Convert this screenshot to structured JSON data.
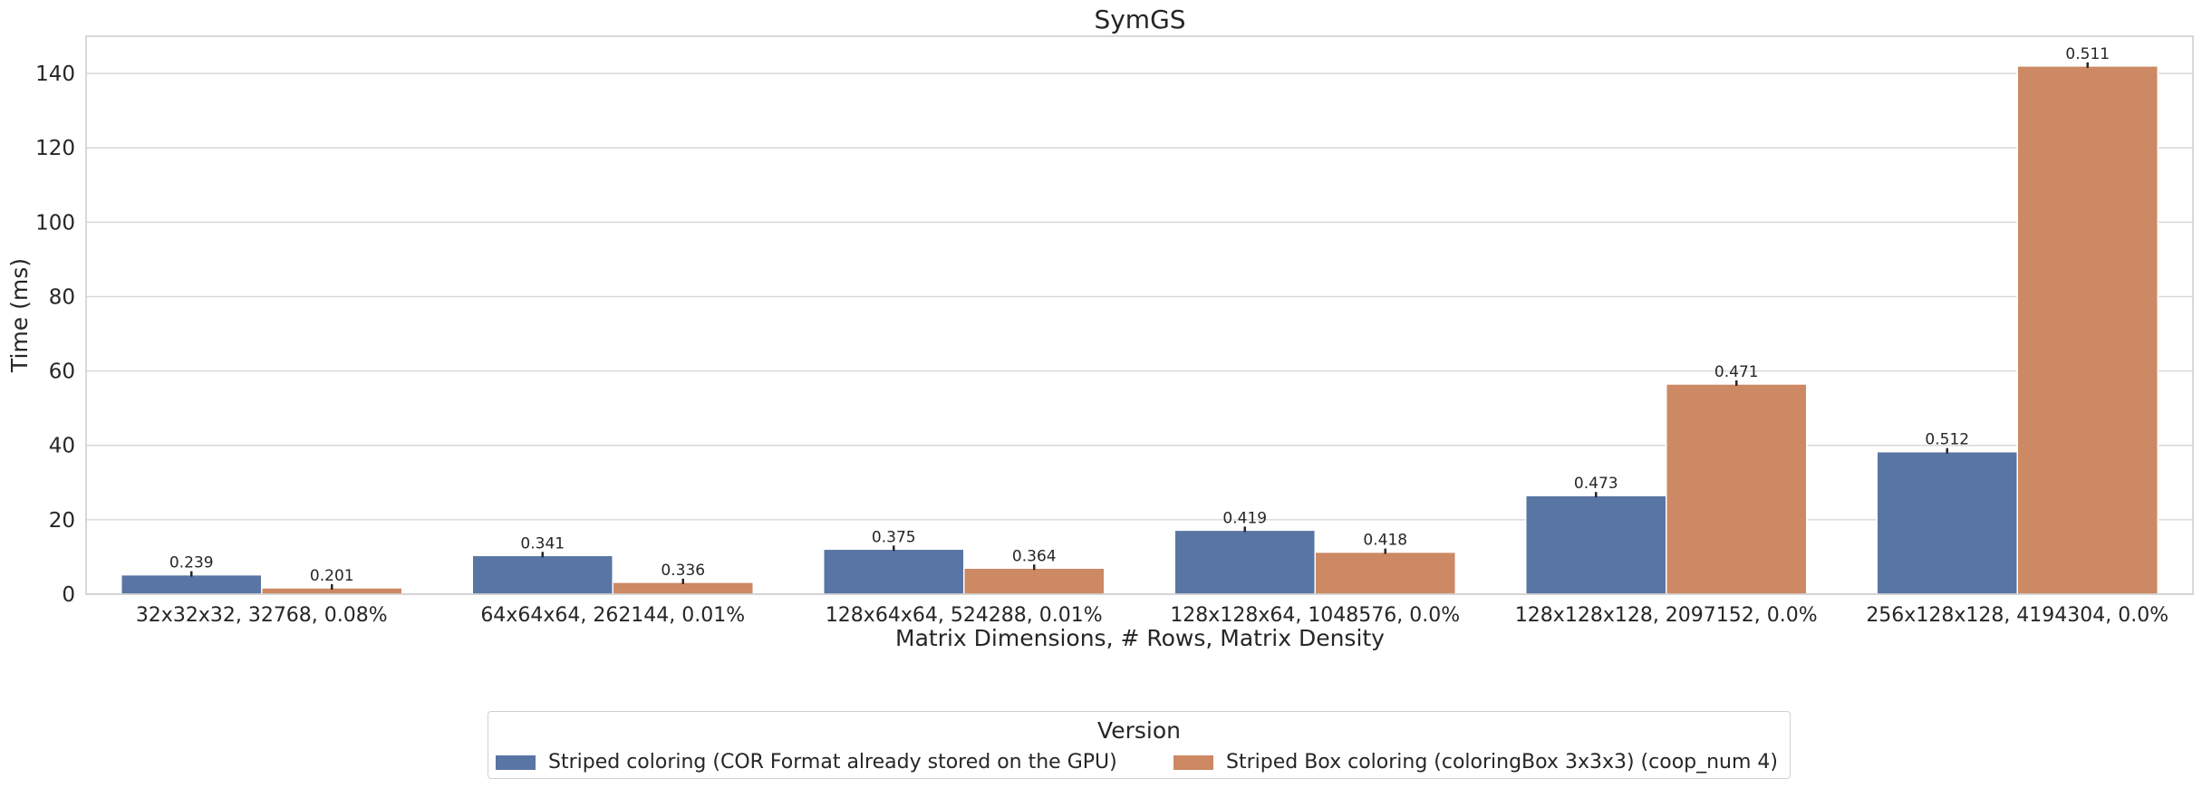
{
  "chart_data": {
    "type": "bar",
    "title": "SymGS",
    "xlabel": "Matrix Dimensions, # Rows, Matrix Density",
    "ylabel": "Time (ms)",
    "ylim": [
      0,
      150
    ],
    "yticks": [
      0,
      20,
      40,
      60,
      80,
      100,
      120,
      140
    ],
    "grid": true,
    "categories": [
      "32x32x32, 32768, 0.08%",
      "64x64x64, 262144, 0.01%",
      "128x64x64, 524288, 0.01%",
      "128x128x64, 1048576, 0.0%",
      "128x128x128, 2097152, 0.0%",
      "256x128x128, 4194304, 0.0%"
    ],
    "series": [
      {
        "name": "Striped coloring (COR Format already stored on the GPU)",
        "color": "#5975a4",
        "values": [
          5.2,
          10.4,
          12.1,
          17.2,
          26.5,
          38.3
        ],
        "labels": [
          "0.239",
          "0.341",
          "0.375",
          "0.419",
          "0.473",
          "0.512"
        ]
      },
      {
        "name": "Striped Box coloring (coloringBox 3x3x3) (coop_num 4)",
        "color": "#cc8963",
        "values": [
          1.7,
          3.2,
          7.0,
          11.3,
          56.5,
          142.0
        ],
        "labels": [
          "0.201",
          "0.336",
          "0.364",
          "0.418",
          "0.471",
          "0.511"
        ]
      }
    ],
    "legend": {
      "title": "Version",
      "placement": "bottom-center"
    }
  }
}
